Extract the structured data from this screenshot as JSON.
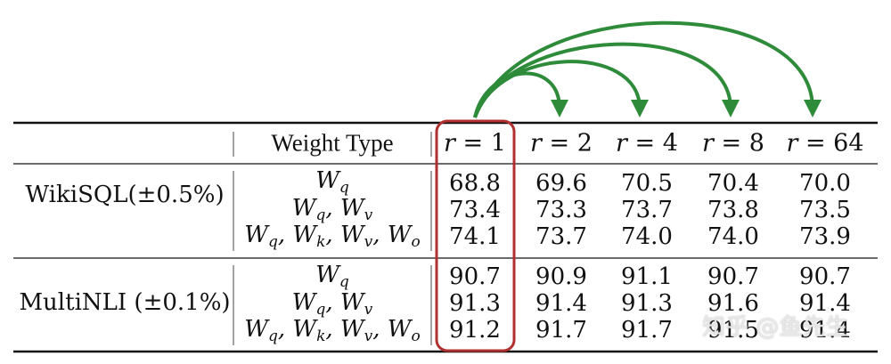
{
  "header": {
    "weight_type_label": "Weight Type",
    "rank_var": "r",
    "rank_values": [
      "1",
      "2",
      "4",
      "8",
      "64"
    ]
  },
  "groups": [
    {
      "label": "WikiSQL(±0.5%)",
      "rows": [
        {
          "weights": [
            "q"
          ],
          "values": [
            "68.8",
            "69.6",
            "70.5",
            "70.4",
            "70.0"
          ]
        },
        {
          "weights": [
            "q",
            "v"
          ],
          "values": [
            "73.4",
            "73.3",
            "73.7",
            "73.8",
            "73.5"
          ]
        },
        {
          "weights": [
            "q",
            "k",
            "v",
            "o"
          ],
          "values": [
            "74.1",
            "73.7",
            "74.0",
            "74.0",
            "73.9"
          ]
        }
      ]
    },
    {
      "label": "MultiNLI (±0.1%)",
      "rows": [
        {
          "weights": [
            "q"
          ],
          "values": [
            "90.7",
            "90.9",
            "91.1",
            "90.7",
            "90.7"
          ]
        },
        {
          "weights": [
            "q",
            "v"
          ],
          "values": [
            "91.3",
            "91.4",
            "91.3",
            "91.6",
            "91.4"
          ]
        },
        {
          "weights": [
            "q",
            "k",
            "v",
            "o"
          ],
          "values": [
            "91.2",
            "91.7",
            "91.7",
            "91.5",
            "91.4"
          ]
        }
      ]
    }
  ],
  "watermark": "知乎 @鱼先生",
  "colors": {
    "highlight_box": "#b03030",
    "arrows": "#2e8b3a",
    "rules": "#111111",
    "separator": "#666666"
  }
}
